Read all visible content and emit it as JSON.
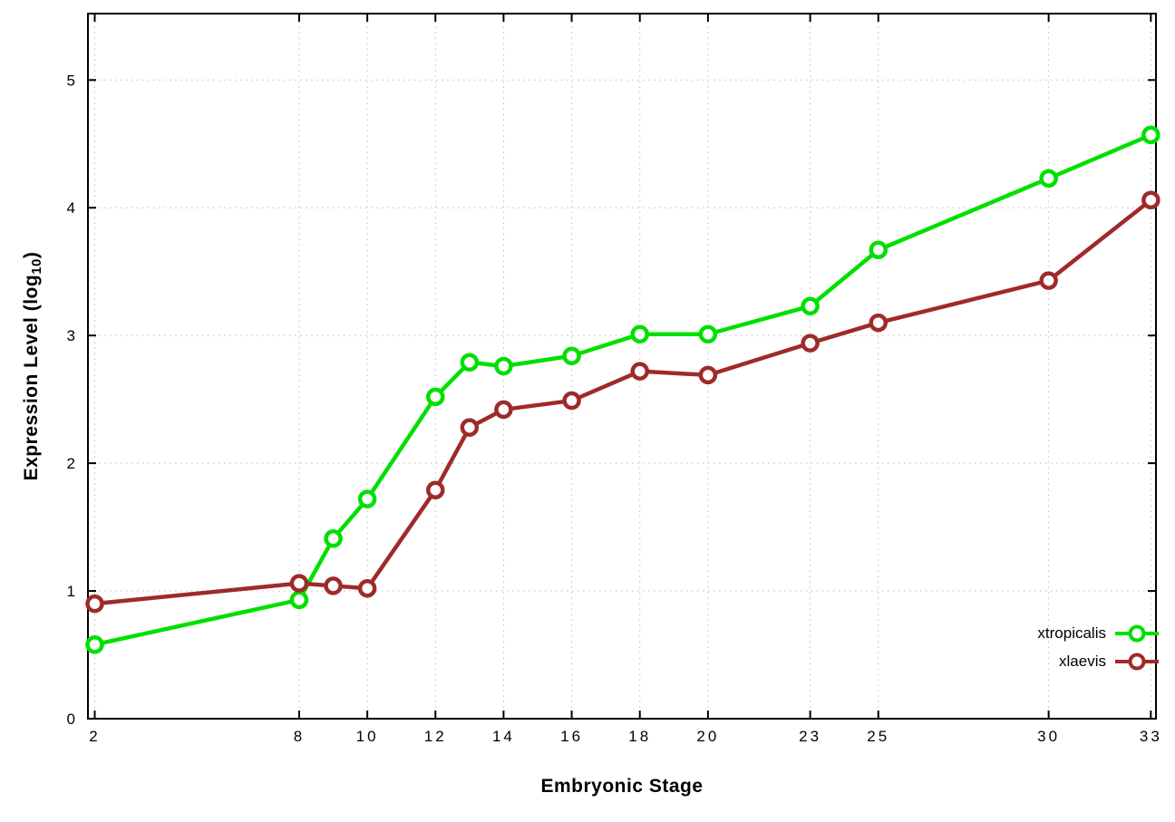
{
  "chart": {
    "xlabel": "Embryonic Stage",
    "ylabel_main": "Expression Level (log",
    "ylabel_sub": "10",
    "ylabel_close": ")",
    "background": "#ffffff",
    "border_color": "#000000",
    "grid_color": "#bdbdbd",
    "tick_label_color": "#000000"
  },
  "chart_data": {
    "type": "line",
    "x": [
      2,
      8,
      9,
      10,
      12,
      13,
      14,
      16,
      18,
      20,
      23,
      25,
      30,
      33
    ],
    "series": [
      {
        "name": "xtropicalis",
        "color": "#00e000",
        "values": [
          0.58,
          0.93,
          1.41,
          1.72,
          2.52,
          2.79,
          2.76,
          2.84,
          3.01,
          3.01,
          3.23,
          3.67,
          4.23,
          4.57
        ]
      },
      {
        "name": "xlaevis",
        "color": "#9e2a2a",
        "values": [
          0.9,
          1.06,
          1.04,
          1.02,
          1.79,
          2.28,
          2.42,
          2.49,
          2.72,
          2.69,
          2.94,
          3.1,
          3.43,
          4.06
        ]
      }
    ],
    "xlabel": "Embryonic Stage",
    "ylabel": "Expression Level (log10)",
    "xlim": [
      1.8,
      33.15
    ],
    "ylim": [
      0,
      5.52
    ],
    "xticks": [
      2,
      8,
      10,
      12,
      14,
      16,
      18,
      20,
      23,
      25,
      30,
      33
    ],
    "yticks": [
      0,
      1,
      2,
      3,
      4,
      5
    ],
    "grid": true,
    "legend_position": "bottom-right"
  }
}
